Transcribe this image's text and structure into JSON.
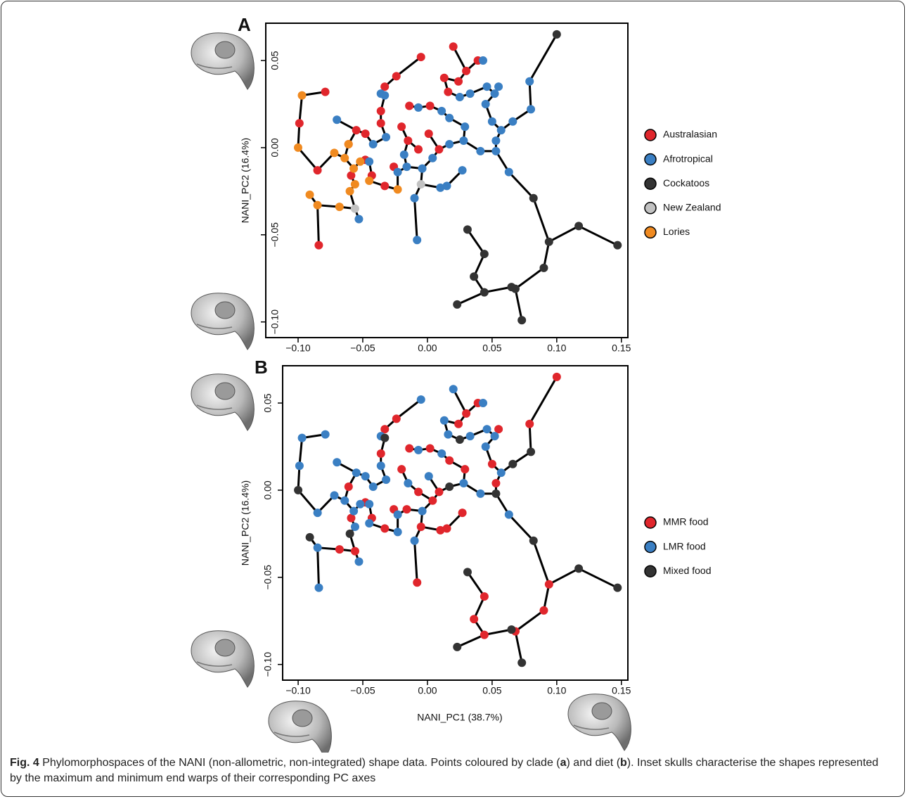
{
  "charts": [
    {
      "type": "scatter",
      "title": "A",
      "ylabel": "NANI_PC2 (16.4%)",
      "xlim": [
        -0.125,
        0.155
      ],
      "ylim": [
        -0.109,
        0.0714
      ],
      "xticks": [
        {
          "value": -0.1,
          "label": "−0.10"
        },
        {
          "value": -0.05,
          "label": "−0.05"
        },
        {
          "value": 0,
          "label": "0.00"
        },
        0.05,
        {
          "value": 0.1,
          "label": "0.10"
        },
        0.15
      ],
      "yticks": [
        {
          "value": -0.1,
          "label": "−0.10"
        },
        {
          "value": -0.05,
          "label": "−0.05"
        },
        {
          "value": 0,
          "label": "0.00"
        },
        0.05
      ],
      "series": [
        {
          "name": "Australasian",
          "color": "#e0262c",
          "x": [
            -0.005,
            0.02,
            0.039,
            0.03,
            0.013,
            0.024,
            -0.024,
            -0.033,
            0.002,
            -0.014,
            -0.036,
            -0.055,
            -0.079,
            -0.099,
            -0.085,
            -0.084,
            -0.061,
            -0.048,
            -0.036,
            -0.02,
            -0.007,
            0.009,
            -0.015,
            0.001,
            -0.033,
            -0.043,
            -0.048,
            -0.059,
            -0.026,
            0.016
          ],
          "values": [
            0.052,
            0.058,
            0.05,
            0.044,
            0.04,
            0.038,
            0.041,
            0.035,
            0.024,
            0.024,
            0.021,
            0.01,
            0.032,
            0.014,
            -0.013,
            -0.056,
            0.002,
            0.008,
            0.014,
            0.012,
            -0.001,
            -0.001,
            0.004,
            0.008,
            -0.022,
            -0.016,
            -0.007,
            -0.016,
            -0.011,
            0.032
          ]
        },
        {
          "name": "Afrotropical",
          "color": "#3a7fc3",
          "x": [
            0.043,
            0.079,
            0.08,
            0.055,
            0.046,
            0.052,
            0.045,
            0.033,
            0.025,
            -0.036,
            -0.033,
            -0.07,
            -0.007,
            0.011,
            0.017,
            0.029,
            0.05,
            0.066,
            0.057,
            0.053,
            0.063,
            0.053,
            0.041,
            0.027,
            0.015,
            0.01,
            -0.01,
            -0.008,
            -0.053,
            -0.045,
            -0.023,
            -0.016,
            -0.004,
            0.004,
            0.017,
            0.028,
            -0.032,
            -0.018,
            -0.042
          ],
          "values": [
            0.05,
            0.038,
            0.022,
            0.035,
            0.035,
            0.031,
            0.025,
            0.031,
            0.029,
            0.031,
            0.03,
            0.016,
            0.023,
            0.021,
            0.017,
            0.012,
            0.015,
            0.015,
            0.01,
            -0.002,
            -0.014,
            0.004,
            -0.002,
            -0.013,
            -0.022,
            -0.023,
            -0.029,
            -0.053,
            -0.041,
            -0.008,
            -0.014,
            -0.011,
            -0.012,
            -0.006,
            0.002,
            0.004,
            0.006,
            -0.004,
            0.002
          ]
        },
        {
          "name": "Cockatoos",
          "color": "#333333",
          "x": [
            0.1,
            0.147,
            0.117,
            0.082,
            0.094,
            0.09,
            0.031,
            0.044,
            0.036,
            0.044,
            0.023,
            0.065,
            0.068,
            0.073
          ],
          "values": [
            0.065,
            -0.056,
            -0.045,
            -0.029,
            -0.054,
            -0.069,
            -0.047,
            -0.061,
            -0.074,
            -0.083,
            -0.09,
            -0.08,
            -0.081,
            -0.099
          ]
        },
        {
          "name": "New Zealand",
          "color": "#c2c2c2",
          "x": [
            -0.056,
            -0.005
          ],
          "values": [
            -0.035,
            -0.021
          ]
        },
        {
          "name": "Lories",
          "color": "#f08a20",
          "x": [
            -0.097,
            -0.1,
            -0.091,
            -0.085,
            -0.068,
            -0.072,
            -0.064,
            -0.057,
            -0.052,
            -0.056,
            -0.06,
            -0.045,
            -0.023,
            -0.061
          ],
          "values": [
            0.03,
            0.0,
            -0.027,
            -0.033,
            -0.034,
            -0.003,
            -0.006,
            -0.012,
            -0.008,
            -0.021,
            -0.025,
            -0.019,
            -0.024,
            0.002
          ]
        }
      ]
    },
    {
      "type": "scatter",
      "title": "B",
      "xlabel": "NANI_PC1 (38.7%)",
      "ylabel": "NANI_PC2 (16.4%)",
      "xlim": [
        -0.112,
        0.155
      ],
      "ylim": [
        -0.109,
        0.0714
      ],
      "xticks": [
        {
          "value": -0.1,
          "label": "−0.10"
        },
        {
          "value": -0.05,
          "label": "−0.05"
        },
        {
          "value": 0,
          "label": "0.00"
        },
        0.05,
        {
          "value": 0.1,
          "label": "0.10"
        },
        0.15
      ],
      "yticks": [
        {
          "value": -0.1,
          "label": "−0.10"
        },
        {
          "value": -0.05,
          "label": "−0.05"
        },
        {
          "value": 0,
          "label": "0.00"
        },
        0.05
      ],
      "series": [
        {
          "name": "MMR food",
          "color": "#e0262c",
          "x": [
            0.1,
            0.09,
            0.094,
            0.036,
            0.044,
            0.044,
            0.068,
            -0.008,
            0.079,
            0.039,
            0.03,
            0.024,
            -0.024,
            -0.033,
            -0.014,
            0.002,
            -0.036,
            -0.02,
            0.009,
            -0.007,
            0.017,
            0.029,
            0.05,
            0.053,
            0.027,
            0.01,
            -0.016,
            -0.033,
            -0.043,
            -0.048,
            -0.059,
            -0.056,
            -0.005,
            -0.068,
            0.015,
            0.004,
            -0.026,
            -0.061,
            0.055
          ],
          "values": [
            0.065,
            -0.069,
            -0.054,
            -0.074,
            -0.061,
            -0.083,
            -0.081,
            -0.053,
            0.038,
            0.05,
            0.044,
            0.038,
            0.041,
            0.035,
            0.024,
            0.024,
            0.021,
            0.012,
            -0.001,
            -0.001,
            0.017,
            0.012,
            0.015,
            0.004,
            -0.013,
            -0.023,
            -0.011,
            -0.022,
            -0.016,
            -0.007,
            -0.016,
            -0.035,
            -0.021,
            -0.034,
            -0.022,
            -0.006,
            -0.011,
            0.002,
            0.035
          ]
        },
        {
          "name": "LMR food",
          "color": "#3a7fc3",
          "x": [
            -0.097,
            -0.099,
            -0.084,
            -0.085,
            -0.085,
            -0.079,
            -0.072,
            -0.064,
            -0.057,
            -0.052,
            -0.056,
            -0.053,
            -0.045,
            -0.023,
            -0.005,
            0.02,
            0.043,
            0.013,
            0.016,
            0.046,
            0.052,
            0.045,
            0.033,
            -0.036,
            -0.07,
            -0.007,
            0.011,
            0.057,
            0.063,
            0.041,
            -0.01,
            -0.045,
            -0.023,
            -0.004,
            0.028,
            -0.032,
            -0.042,
            -0.036,
            -0.048,
            -0.055,
            0.001,
            -0.015
          ],
          "values": [
            0.03,
            0.014,
            -0.056,
            -0.013,
            -0.033,
            0.032,
            -0.003,
            -0.006,
            -0.012,
            -0.008,
            -0.021,
            -0.041,
            -0.019,
            -0.024,
            0.052,
            0.058,
            0.05,
            0.04,
            0.032,
            0.035,
            0.031,
            0.025,
            0.031,
            0.031,
            0.016,
            0.023,
            0.021,
            0.01,
            -0.014,
            -0.002,
            -0.029,
            -0.008,
            -0.014,
            -0.012,
            0.004,
            0.006,
            0.002,
            0.014,
            0.008,
            0.01,
            0.008,
            0.004
          ]
        },
        {
          "name": "Mixed food",
          "color": "#333333",
          "x": [
            -0.1,
            -0.091,
            -0.06,
            0.08,
            0.066,
            0.053,
            0.025,
            -0.033,
            0.147,
            0.117,
            0.082,
            0.031,
            0.023,
            0.065,
            0.073,
            0.017
          ],
          "values": [
            0.0,
            -0.027,
            -0.025,
            0.022,
            0.015,
            -0.002,
            0.029,
            0.03,
            -0.056,
            -0.045,
            -0.029,
            -0.047,
            -0.09,
            -0.08,
            -0.099,
            0.002
          ]
        }
      ]
    }
  ],
  "caption": {
    "label": "Fig. 4",
    "parts": [
      " Phylomorphospaces of the NANI (non-allometric, non-integrated) shape data. Points coloured by clade (",
      "a",
      ") and diet (",
      "b",
      "). Inset skulls characterise the shapes represented by the maximum and minimum end warps of their corresponding PC axes"
    ]
  }
}
